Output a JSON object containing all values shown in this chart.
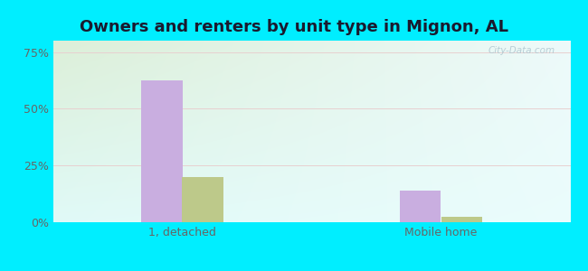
{
  "title": "Owners and renters by unit type in Mignon, AL",
  "categories": [
    "1, detached",
    "Mobile home"
  ],
  "owner_values": [
    62.5,
    14.0
  ],
  "renter_values": [
    20.0,
    2.5
  ],
  "owner_color": "#c9aee0",
  "renter_color": "#bdc98a",
  "yticks": [
    0,
    25,
    50,
    75
  ],
  "ytick_labels": [
    "0%",
    "25%",
    "50%",
    "75%"
  ],
  "ylim": [
    0,
    80
  ],
  "bar_width": 0.32,
  "background_topleft": "#dcefd8",
  "background_right": "#e8f8f8",
  "outer_color": "#00eeff",
  "title_fontsize": 13,
  "title_color": "#1a1a2e",
  "axis_label_color": "#666666",
  "watermark": "City-Data.com",
  "group_positions": [
    1.0,
    3.0
  ],
  "xlim": [
    0.0,
    4.0
  ]
}
